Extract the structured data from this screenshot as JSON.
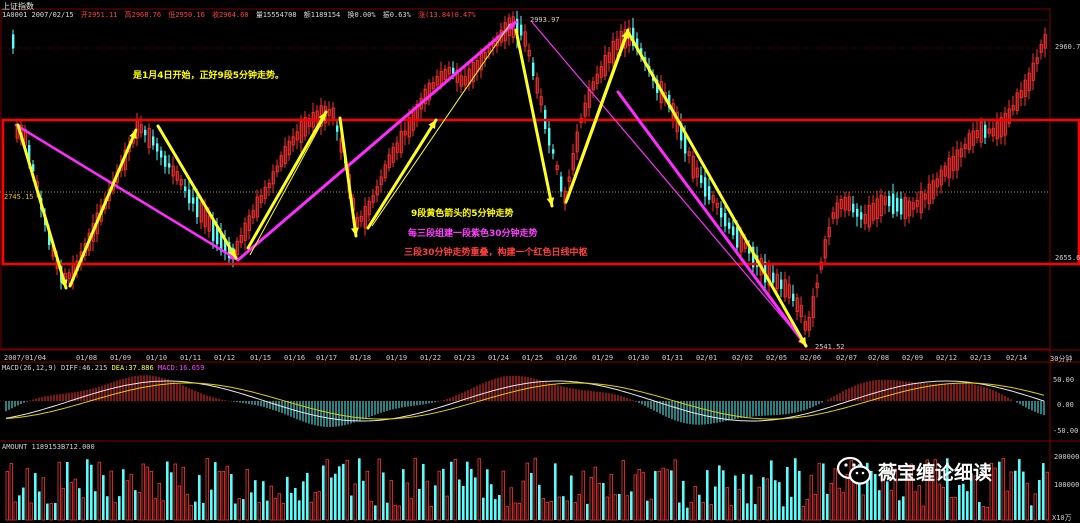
{
  "header": {
    "title": "上证指数",
    "code_date": "1A0001 2007/02/15",
    "open": "开2951.11",
    "high": "高2968.76",
    "low": "低2950.16",
    "close": "收2964.60",
    "volume": "量15554708",
    "amount": "额1189154",
    "turnover": "换0.00%",
    "amplitude": "振0.63%",
    "change": "涨(13.84)0.47%"
  },
  "price_axis": {
    "top_level": "2960.7",
    "mid_level": "2745.15",
    "bottom_level": "2655.6",
    "high_mark": "2993.97",
    "low_mark": "2541.52"
  },
  "annotations": {
    "line1": "是1月4日开始，正好9段5分钟走势。",
    "line2": "9段黄色箭头的5分钟走势",
    "line3": "每三段组建一段紫色30分钟走势",
    "line4": "三段30分钟走势重叠，构建一个红色日线中枢"
  },
  "date_axis": [
    "2007/01/04",
    "01/08",
    "01/09",
    "01/10",
    "01/11",
    "01/12",
    "01/15",
    "01/16",
    "01/17",
    "01/18",
    "01/19",
    "01/22",
    "01/23",
    "01/24",
    "01/25",
    "01/26",
    "01/29",
    "01/30",
    "01/31",
    "02/01",
    "02/02",
    "02/05",
    "02/06",
    "02/07",
    "02/08",
    "02/09",
    "02/12",
    "02/13",
    "02/14"
  ],
  "period_label": "30分钟",
  "macd": {
    "header_main": "MACD(26,12,9) DIFF:46.215",
    "header_dea": "DEA:37.886",
    "header_macd": "MACD:16.659",
    "ticks": [
      "50.00",
      "0.00",
      "-50.00"
    ]
  },
  "amount_panel": {
    "header": "AMOUNT 1189153B712.000",
    "ticks": [
      "200000",
      "100000"
    ],
    "unit": "X10万"
  },
  "watermark": "薇宝缠论细读",
  "colors": {
    "up": "#ff3030",
    "down": "#54ffff",
    "yellow": "#ffff20",
    "magenta": "#ff2cff",
    "box": "#ff0000"
  }
}
